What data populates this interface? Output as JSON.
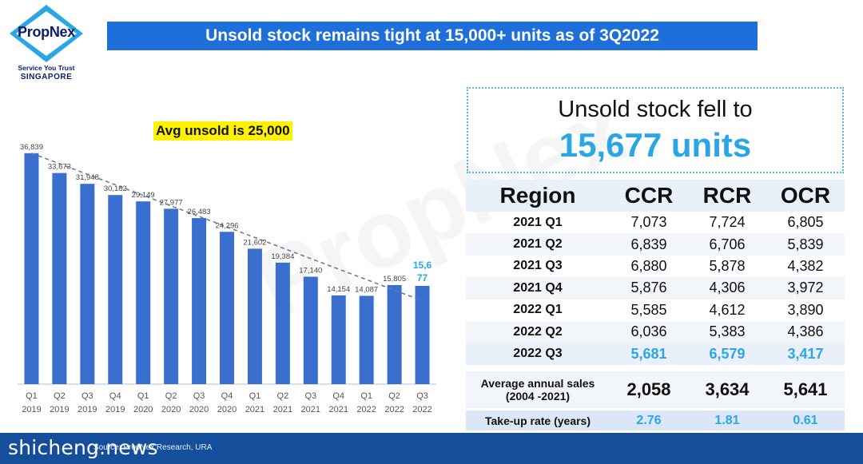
{
  "brand": {
    "name": "PropNex",
    "tagline": "Service You Trust",
    "country": "SINGAPORE",
    "color": "#0a1f6b",
    "accent": "#2aa6e6"
  },
  "title": "Unsold stock remains tight at 15,000+ units as of 3Q2022",
  "watermark": "PropNex",
  "avg_label": "Avg unsold is 25,000",
  "callout": {
    "line1": "Unsold stock fell to",
    "line2": "15,677 units"
  },
  "chart_data": {
    "type": "bar",
    "categories": [
      "Q1 2019",
      "Q2 2019",
      "Q3 2019",
      "Q4 2019",
      "Q1 2020",
      "Q2 2020",
      "Q3 2020",
      "Q4 2020",
      "Q1 2021",
      "Q2 2021",
      "Q3 2021",
      "Q4 2021",
      "Q1 2022",
      "Q2 2022",
      "Q3 2022"
    ],
    "category_lines": [
      [
        "Q1",
        "2019"
      ],
      [
        "Q2",
        "2019"
      ],
      [
        "Q3",
        "2019"
      ],
      [
        "Q4",
        "2019"
      ],
      [
        "Q1",
        "2020"
      ],
      [
        "Q2",
        "2020"
      ],
      [
        "Q3",
        "2020"
      ],
      [
        "Q4",
        "2020"
      ],
      [
        "Q1",
        "2021"
      ],
      [
        "Q2",
        "2021"
      ],
      [
        "Q3",
        "2021"
      ],
      [
        "Q4",
        "2021"
      ],
      [
        "Q1",
        "2022"
      ],
      [
        "Q2",
        "2022"
      ],
      [
        "Q3",
        "2022"
      ]
    ],
    "values": [
      36839,
      33673,
      31948,
      30162,
      29149,
      27977,
      26483,
      24296,
      21602,
      19384,
      17140,
      14154,
      14087,
      15805,
      15677
    ],
    "labels": [
      "36,839",
      "33,673",
      "31,948",
      "30,162",
      "29,149",
      "27,977",
      "26,483",
      "24,296",
      "21,602",
      "19,384",
      "17,140",
      "14,154",
      "14,087",
      "15,805",
      "15,6\n77"
    ],
    "trendline": true,
    "ylim": [
      0,
      40000
    ],
    "bar_color": "#3a6fd0",
    "last_label_color": "#2aa6e6"
  },
  "table": {
    "headers": [
      "Region",
      "CCR",
      "RCR",
      "OCR"
    ],
    "rows": [
      {
        "region": "2021 Q1",
        "ccr": "7,073",
        "rcr": "7,724",
        "ocr": "6,805"
      },
      {
        "region": "2021 Q2",
        "ccr": "6,839",
        "rcr": "6,706",
        "ocr": "5,839"
      },
      {
        "region": "2021 Q3",
        "ccr": "6,880",
        "rcr": "5,878",
        "ocr": "4,382"
      },
      {
        "region": "2021 Q4",
        "ccr": "5,876",
        "rcr": "4,306",
        "ocr": "3,972"
      },
      {
        "region": "2022 Q1",
        "ccr": "5,585",
        "rcr": "4,612",
        "ocr": "3,890"
      },
      {
        "region": "2022 Q2",
        "ccr": "6,036",
        "rcr": "5,383",
        "ocr": "4,386"
      },
      {
        "region": "2022 Q3",
        "ccr": "5,681",
        "rcr": "6,579",
        "ocr": "3,417"
      }
    ],
    "avg_row": {
      "label_line1": "Average annual sales",
      "label_line2": "(2004 -2021)",
      "ccr": "2,058",
      "rcr": "3,634",
      "ocr": "5,641"
    },
    "take_row": {
      "label": "Take-up rate (years)",
      "ccr": "2.76",
      "rcr": "1.81",
      "ocr": "0.61"
    }
  },
  "footer": {
    "source": "Source: PropNex Research, URA",
    "site": "shicheng.news"
  }
}
